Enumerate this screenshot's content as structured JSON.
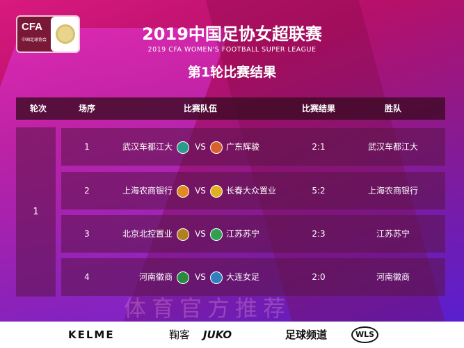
{
  "logo": {
    "text": "CFA",
    "subtext": "中国足球协会"
  },
  "title": "2019中国足协女超联赛",
  "subtitle": "2019 CFA WOMEN'S FOOTBALL SUPER LEAGUE",
  "round_title": "第1轮比赛结果",
  "headers": [
    "轮次",
    "场序",
    "比赛队伍",
    "比赛结果",
    "胜队"
  ],
  "round": "1",
  "vs": "VS",
  "matches": [
    {
      "no": "1",
      "home": "武汉车都江大",
      "away": "广东辉骏",
      "score": "2:1",
      "winner": "武汉车都江大",
      "home_color": "#2a9c8c",
      "away_color": "#d8602a"
    },
    {
      "no": "2",
      "home": "上海农商银行",
      "away": "长春大众置业",
      "score": "5:2",
      "winner": "上海农商银行",
      "home_color": "#e08a20",
      "away_color": "#e0b020"
    },
    {
      "no": "3",
      "home": "北京北控置业",
      "away": "江苏苏宁",
      "score": "2:3",
      "winner": "江苏苏宁",
      "home_color": "#b08020",
      "away_color": "#30a050"
    },
    {
      "no": "4",
      "home": "河南徽商",
      "away": "大连女足",
      "score": "2:0",
      "winner": "河南徽商",
      "home_color": "#2a8a40",
      "away_color": "#3080c0"
    }
  ],
  "sponsors": [
    "KELME",
    "鞠客",
    "JUKO",
    "足球频道",
    "WLS"
  ],
  "watermark": "体育官方推荐"
}
